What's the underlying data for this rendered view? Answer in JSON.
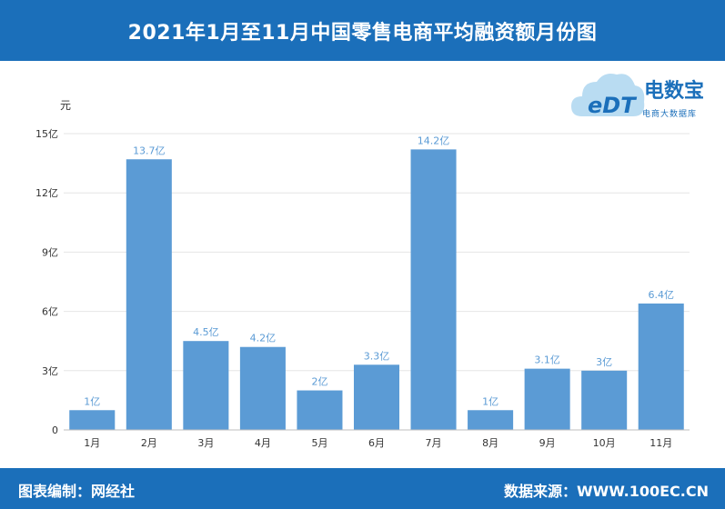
{
  "header": {
    "title": "2021年1月至11月中国零售电商平均融资额月份图"
  },
  "logo": {
    "name_cn": "电数宝",
    "tagline": "电商大数据库",
    "mark": "eDT"
  },
  "footer": {
    "left": "图表编制：网经社",
    "right": "数据来源：WWW.100EC.CN"
  },
  "colors": {
    "bar": "#5b9bd5",
    "header": "#1b6fba",
    "label": "#5b9bd5"
  },
  "chart_data": {
    "type": "bar",
    "title": "2021年1月至11月中国零售电商平均融资额月份图",
    "ylabel": "元",
    "categories": [
      "1月",
      "2月",
      "3月",
      "4月",
      "5月",
      "6月",
      "7月",
      "8月",
      "9月",
      "10月",
      "11月"
    ],
    "values": [
      1,
      13.7,
      4.5,
      4.2,
      2,
      3.3,
      14.2,
      1,
      3.1,
      3,
      6.4
    ],
    "data_labels": [
      "1亿",
      "13.7亿",
      "4.5亿",
      "4.2亿",
      "2亿",
      "3.3亿",
      "14.2亿",
      "1亿",
      "3.1亿",
      "3亿",
      "6.4亿"
    ],
    "yticks": [
      0,
      3,
      6,
      9,
      12,
      15
    ],
    "ytick_labels": [
      "0",
      "3亿",
      "6亿",
      "9亿",
      "12亿",
      "15亿"
    ],
    "ylim": [
      0,
      15
    ],
    "grid": true,
    "legend": "none"
  }
}
